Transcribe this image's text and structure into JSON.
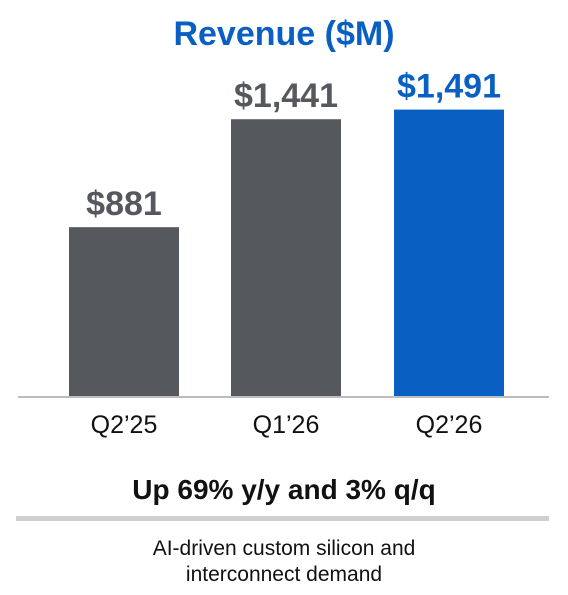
{
  "chart_data": {
    "type": "bar",
    "title": "Revenue ($M)",
    "categories": [
      "Q2’25",
      "Q1’26",
      "Q2’26"
    ],
    "values": [
      881,
      1441,
      1491
    ],
    "value_labels": [
      "$881",
      "$1,441",
      "$1,491"
    ],
    "xlabel": "",
    "ylabel": "",
    "ylim": [
      0,
      1520
    ],
    "grid": false,
    "legend": "none",
    "colors": {
      "title": "#0a60c2",
      "default_bar": "#55585d",
      "highlight_bar": "#0a60c2",
      "default_label": "#55585d",
      "highlight_label": "#0a60c2",
      "axis": "#bdbdbd"
    },
    "highlight_index": 2
  },
  "summary": {
    "headline": "Up 69% y/y and 3% q/q",
    "detail_lines": [
      "AI-driven custom silicon and",
      "interconnect demand"
    ]
  }
}
